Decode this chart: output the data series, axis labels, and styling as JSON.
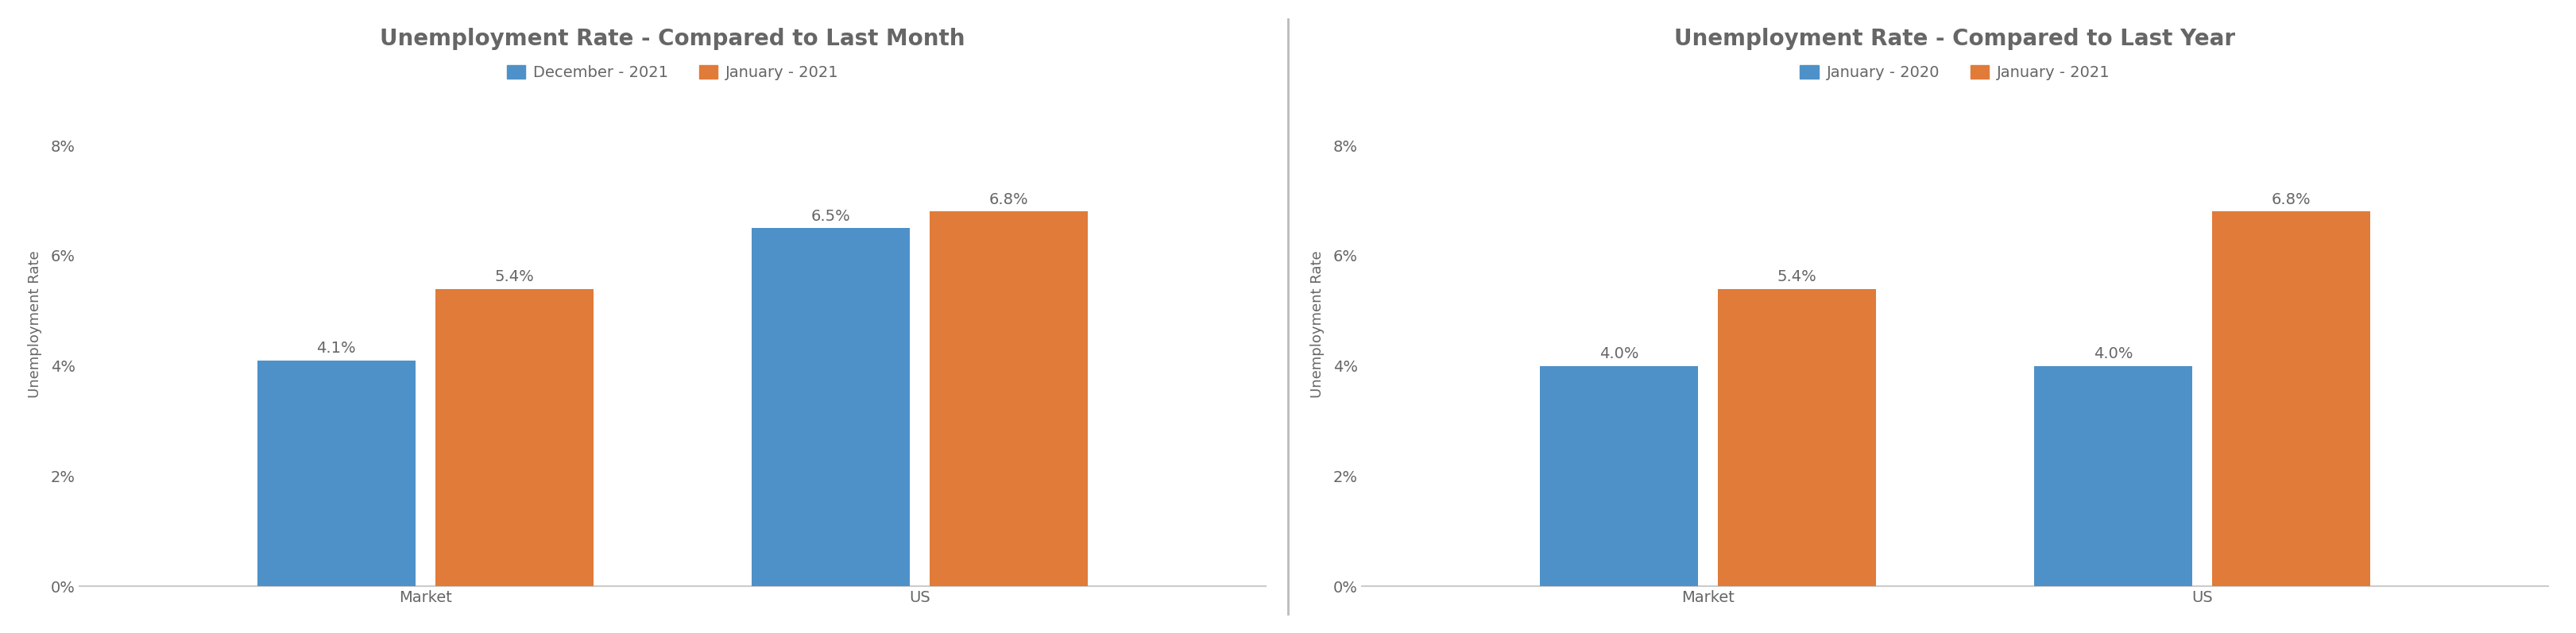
{
  "chart1": {
    "title": "Unemployment Rate - Compared to Last Month",
    "legend_labels": [
      "December - 2021",
      "January - 2021"
    ],
    "categories": [
      "Market",
      "US"
    ],
    "series1_values": [
      4.1,
      6.5
    ],
    "series2_values": [
      5.4,
      6.8
    ],
    "series1_labels": [
      "4.1%",
      "6.5%"
    ],
    "series2_labels": [
      "5.4%",
      "6.8%"
    ],
    "ylabel": "Unemployment Rate",
    "ylim": [
      0,
      9.5
    ],
    "yticks": [
      0,
      2,
      4,
      6,
      8
    ],
    "ytick_labels": [
      "0%",
      "2%",
      "4%",
      "6%",
      "8%"
    ]
  },
  "chart2": {
    "title": "Unemployment Rate - Compared to Last Year",
    "legend_labels": [
      "January - 2020",
      "January - 2021"
    ],
    "categories": [
      "Market",
      "US"
    ],
    "series1_values": [
      4.0,
      4.0
    ],
    "series2_values": [
      5.4,
      6.8
    ],
    "series1_labels": [
      "4.0%",
      "4.0%"
    ],
    "series2_labels": [
      "5.4%",
      "6.8%"
    ],
    "ylabel": "Unemployment Rate",
    "ylim": [
      0,
      9.5
    ],
    "yticks": [
      0,
      2,
      4,
      6,
      8
    ],
    "ytick_labels": [
      "0%",
      "2%",
      "4%",
      "6%",
      "8%"
    ]
  },
  "blue_color": "#4E91C9",
  "orange_color": "#E07B39",
  "background_color": "#FFFFFF",
  "divider_color": "#BBBBBB",
  "title_fontsize": 20,
  "tick_fontsize": 14,
  "legend_fontsize": 14,
  "bar_label_fontsize": 14,
  "ylabel_fontsize": 13,
  "bar_width": 0.32,
  "bar_gap": 0.04,
  "text_color": "#666666"
}
